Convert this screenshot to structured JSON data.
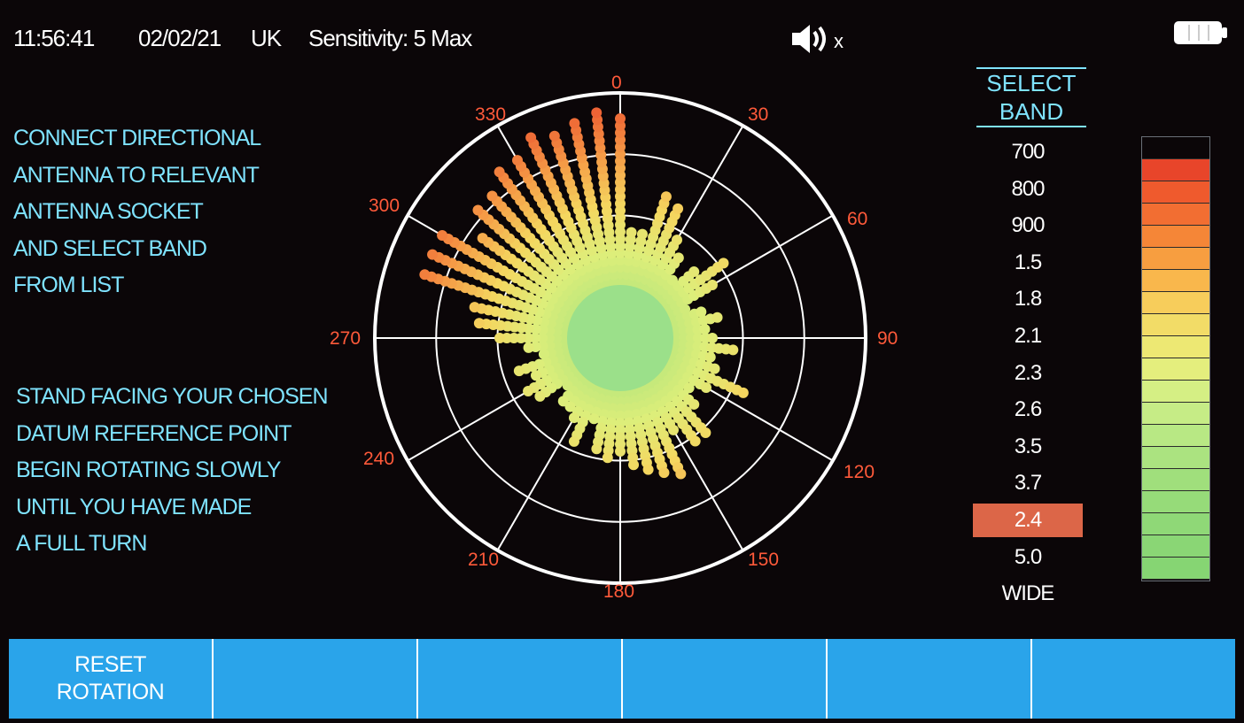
{
  "status": {
    "time": "11:56:41",
    "date": "02/02/21",
    "region": "UK",
    "sensitivity": "Sensitivity: 5 Max",
    "speaker_icon": "speaker-muted-icon",
    "speaker_mute_mark": "x",
    "battery_icon": "battery-full-icon"
  },
  "instructions": {
    "block1": [
      "CONNECT DIRECTIONAL",
      "ANTENNA TO RELEVANT",
      "ANTENNA SOCKET",
      "AND SELECT BAND",
      "FROM LIST"
    ],
    "block2": [
      "STAND FACING YOUR CHOSEN",
      "DATUM REFERENCE POINT",
      "BEGIN ROTATING SLOWLY",
      "UNTIL YOU HAVE MADE",
      "A FULL TURN"
    ]
  },
  "polar": {
    "angle_labels": [
      "0",
      "30",
      "60",
      "90",
      "120",
      "150",
      "180",
      "210",
      "240",
      "270",
      "300",
      "330"
    ],
    "rays": [
      {
        "angle": 0,
        "level": 0.92
      },
      {
        "angle": 6,
        "level": 0.45
      },
      {
        "angle": 12,
        "level": 0.45
      },
      {
        "angle": 18,
        "level": 0.62
      },
      {
        "angle": 24,
        "level": 0.58
      },
      {
        "angle": 30,
        "level": 0.48
      },
      {
        "angle": 36,
        "level": 0.42
      },
      {
        "angle": 42,
        "level": 0.34
      },
      {
        "angle": 48,
        "level": 0.42
      },
      {
        "angle": 54,
        "level": 0.52
      },
      {
        "angle": 60,
        "level": 0.44
      },
      {
        "angle": 66,
        "level": 0.3
      },
      {
        "angle": 72,
        "level": 0.36
      },
      {
        "angle": 78,
        "level": 0.42
      },
      {
        "angle": 84,
        "level": 0.36
      },
      {
        "angle": 90,
        "level": 0.4
      },
      {
        "angle": 96,
        "level": 0.48
      },
      {
        "angle": 102,
        "level": 0.4
      },
      {
        "angle": 108,
        "level": 0.42
      },
      {
        "angle": 114,
        "level": 0.56
      },
      {
        "angle": 120,
        "level": 0.42
      },
      {
        "angle": 126,
        "level": 0.36
      },
      {
        "angle": 132,
        "level": 0.42
      },
      {
        "angle": 138,
        "level": 0.54
      },
      {
        "angle": 144,
        "level": 0.52
      },
      {
        "angle": 150,
        "level": 0.44
      },
      {
        "angle": 156,
        "level": 0.62
      },
      {
        "angle": 162,
        "level": 0.58
      },
      {
        "angle": 168,
        "level": 0.56
      },
      {
        "angle": 174,
        "level": 0.52
      },
      {
        "angle": 180,
        "level": 0.48
      },
      {
        "angle": 186,
        "level": 0.5
      },
      {
        "angle": 192,
        "level": 0.48
      },
      {
        "angle": 198,
        "level": 0.36
      },
      {
        "angle": 204,
        "level": 0.48
      },
      {
        "angle": 210,
        "level": 0.4
      },
      {
        "angle": 216,
        "level": 0.36
      },
      {
        "angle": 222,
        "level": 0.36
      },
      {
        "angle": 228,
        "level": 0.3
      },
      {
        "angle": 234,
        "level": 0.42
      },
      {
        "angle": 240,
        "level": 0.46
      },
      {
        "angle": 246,
        "level": 0.38
      },
      {
        "angle": 252,
        "level": 0.44
      },
      {
        "angle": 258,
        "level": 0.34
      },
      {
        "angle": 264,
        "level": 0.4
      },
      {
        "angle": 270,
        "level": 0.5
      },
      {
        "angle": 276,
        "level": 0.58
      },
      {
        "angle": 282,
        "level": 0.62
      },
      {
        "angle": 288,
        "level": 0.86
      },
      {
        "angle": 294,
        "level": 0.85
      },
      {
        "angle": 300,
        "level": 0.86
      },
      {
        "angle": 306,
        "level": 0.72
      },
      {
        "angle": 312,
        "level": 0.8
      },
      {
        "angle": 318,
        "level": 0.78
      },
      {
        "angle": 324,
        "level": 0.84
      },
      {
        "angle": 330,
        "level": 0.86
      },
      {
        "angle": 336,
        "level": 0.9
      },
      {
        "angle": 342,
        "level": 0.88
      },
      {
        "angle": 348,
        "level": 0.9
      },
      {
        "angle": 354,
        "level": 0.94
      }
    ]
  },
  "bands": {
    "title_line1": "SELECT",
    "title_line2": "BAND",
    "items": [
      "700",
      "800",
      "900",
      "1.5",
      "1.8",
      "2.1",
      "2.3",
      "2.6",
      "3.5",
      "3.7",
      "2.4",
      "5.0",
      "WIDE"
    ],
    "selected": "2.4",
    "selected_color": "#dc6648"
  },
  "scale_colors": [
    "#0b0608",
    "#e8452a",
    "#ef5a2d",
    "#f26e32",
    "#f58637",
    "#f79e40",
    "#f9b74c",
    "#f7cd5b",
    "#f2dc67",
    "#ede873",
    "#e4ee7d",
    "#d5ef84",
    "#c6ec86",
    "#b8e884",
    "#abe380",
    "#a0df7c",
    "#96db79",
    "#8fd877",
    "#8ad675",
    "#86d573"
  ],
  "softkeys": [
    "RESET\nROTATION",
    "",
    "",
    "",
    "",
    ""
  ],
  "colors": {
    "accent": "#7fe3ff",
    "angle_label": "#ff5a3a",
    "softkey_bg": "#2aa4ea"
  }
}
